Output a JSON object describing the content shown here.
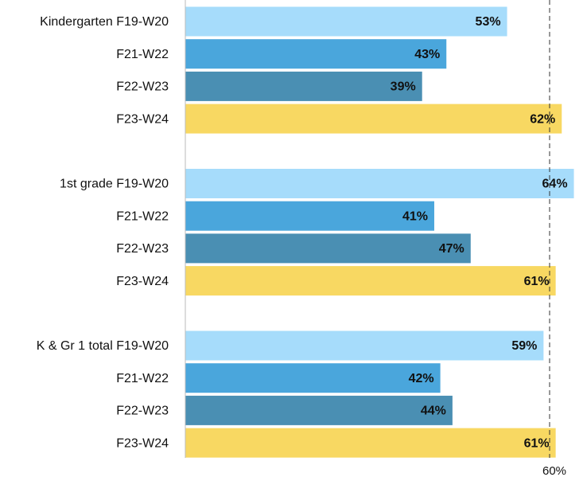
{
  "chart_data": {
    "type": "bar",
    "orientation": "horizontal",
    "categories": [
      "Kindergarten F19-W20",
      "F21-W22",
      "F22-W23",
      "F23-W24",
      "1st grade F19-W20",
      "F21-W22",
      "F22-W23",
      "F23-W24",
      "K  & Gr 1 total F19-W20",
      "F21-W22",
      "F22-W23",
      "F23-W24"
    ],
    "values": [
      53,
      43,
      39,
      62,
      64,
      41,
      47,
      61,
      59,
      42,
      44,
      61
    ],
    "value_labels": [
      "53%",
      "43%",
      "39%",
      "62%",
      "64%",
      "41%",
      "47%",
      "61%",
      "59%",
      "42%",
      "44%",
      "61%"
    ],
    "colors": [
      "#a6dcfb",
      "#4aa6dc",
      "#4a8fb3",
      "#f8d862",
      "#a6dcfb",
      "#4aa6dc",
      "#4a8fb3",
      "#f8d862",
      "#a6dcfb",
      "#4aa6dc",
      "#4a8fb3",
      "#f8d862"
    ],
    "xlim": [
      0,
      65.5
    ],
    "xticks": [
      {
        "value": 60,
        "label": "60%"
      }
    ],
    "grid": true
  }
}
